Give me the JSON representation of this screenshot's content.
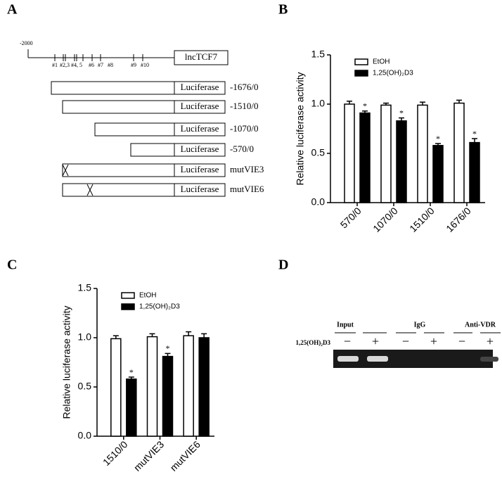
{
  "panels": [
    "A",
    "B",
    "C",
    "D"
  ],
  "diagram": {
    "start_label": "-2000",
    "sites": [
      "#1",
      "#2,3",
      "#4, 5",
      "#6",
      "#7",
      "#8",
      "#9",
      "#10"
    ],
    "gene": "lncTCF7",
    "constructs": [
      {
        "reporter": "Luciferase",
        "label": "-1676/0"
      },
      {
        "reporter": "Luciferase",
        "label": "-1510/0"
      },
      {
        "reporter": "Luciferase",
        "label": "-1070/0"
      },
      {
        "reporter": "Luciferase",
        "label": "-570/0"
      },
      {
        "reporter": "Luciferase",
        "label": "mutVIE3"
      },
      {
        "reporter": "Luciferase",
        "label": "mutVIE6"
      }
    ]
  },
  "chart_data": [
    {
      "type": "bar",
      "y_label": "Relative luciferase activity",
      "categories": [
        "570/0",
        "1070/0",
        "1510/0",
        "1676/0"
      ],
      "series": [
        {
          "name": "EtOH",
          "color": "#ffffff",
          "values": [
            1.0,
            0.99,
            0.99,
            1.01
          ],
          "errors": [
            0.03,
            0.02,
            0.03,
            0.03
          ],
          "markers": [
            null,
            null,
            null,
            null
          ]
        },
        {
          "name": "1,25(OH)₂D3",
          "color": "#000000",
          "values": [
            0.91,
            0.83,
            0.58,
            0.61
          ],
          "errors": [
            0.02,
            0.03,
            0.02,
            0.04
          ],
          "markers": [
            "*",
            "*",
            "*",
            "*"
          ]
        }
      ],
      "ylim": [
        0,
        1.5
      ],
      "yticks": [
        {
          "value": 0,
          "label": "0.0"
        },
        0.5,
        {
          "value": 1,
          "label": "1.0"
        },
        1.5
      ],
      "legend": "top-left"
    },
    {
      "type": "bar",
      "y_label": "Relative luciferase activity",
      "categories": [
        "1510/0",
        "mutVIE3",
        "mutVIE6"
      ],
      "series": [
        {
          "name": "EtOH",
          "color": "#ffffff",
          "values": [
            0.99,
            1.01,
            1.02
          ],
          "errors": [
            0.03,
            0.03,
            0.04
          ],
          "markers": [
            null,
            null,
            null
          ]
        },
        {
          "name": "1,25(OH)₂D3",
          "color": "#000000",
          "values": [
            0.58,
            0.81,
            1.0
          ],
          "errors": [
            0.02,
            0.03,
            0.04
          ],
          "markers": [
            "*",
            "*",
            null
          ]
        }
      ],
      "ylim": [
        0,
        1.5
      ],
      "yticks": [
        {
          "value": 0,
          "label": "0.0"
        },
        0.5,
        {
          "value": 1,
          "label": "1.0"
        },
        1.5
      ],
      "legend": "top-left"
    }
  ],
  "gel": {
    "columns": [
      "Input",
      "IgG",
      "Anti-VDR"
    ],
    "row_label": "1,25(OH)₂D3",
    "signs": [
      "−",
      "+",
      "−",
      "+",
      "−",
      "+"
    ]
  }
}
